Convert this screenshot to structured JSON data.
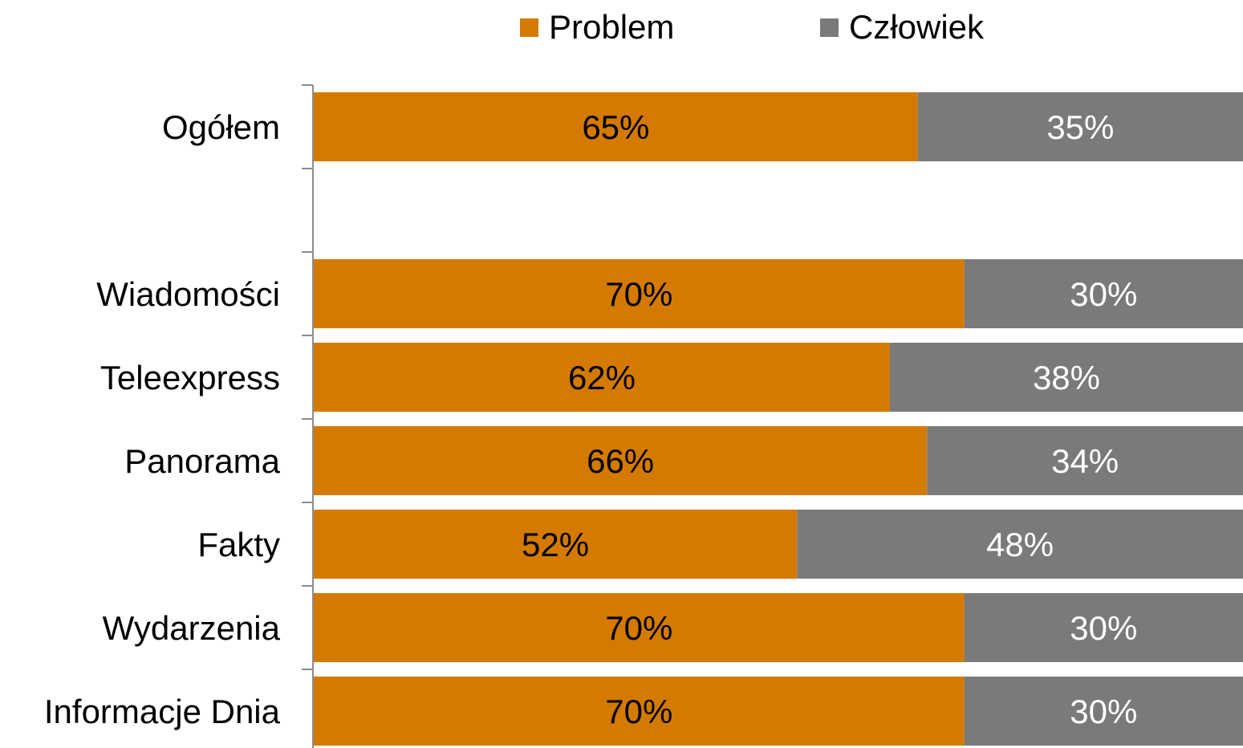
{
  "chart_data": {
    "type": "bar",
    "orientation": "horizontal",
    "stacked": "percent",
    "categories": [
      "Ogółem",
      "",
      "Wiadomości",
      "Teleexpress",
      "Panorama",
      "Fakty",
      "Wydarzenia",
      "Informacje Dnia"
    ],
    "series": [
      {
        "name": "Problem",
        "color": "#D47A00",
        "values": [
          65,
          null,
          70,
          62,
          66,
          52,
          70,
          70
        ],
        "labels": [
          "65%",
          "",
          "70%",
          "62%",
          "66%",
          "52%",
          "70%",
          "70%"
        ],
        "label_color": "#000000"
      },
      {
        "name": "Człowiek",
        "color": "#7A7A7B",
        "values": [
          35,
          null,
          30,
          38,
          34,
          48,
          30,
          30
        ],
        "labels": [
          "35%",
          "",
          "30%",
          "38%",
          "34%",
          "48%",
          "30%",
          "30%"
        ],
        "label_color": "#FFFFFF"
      }
    ],
    "xlim": [
      0,
      100
    ],
    "legend_position": "top",
    "grid": false,
    "xaxis_visible": false
  }
}
